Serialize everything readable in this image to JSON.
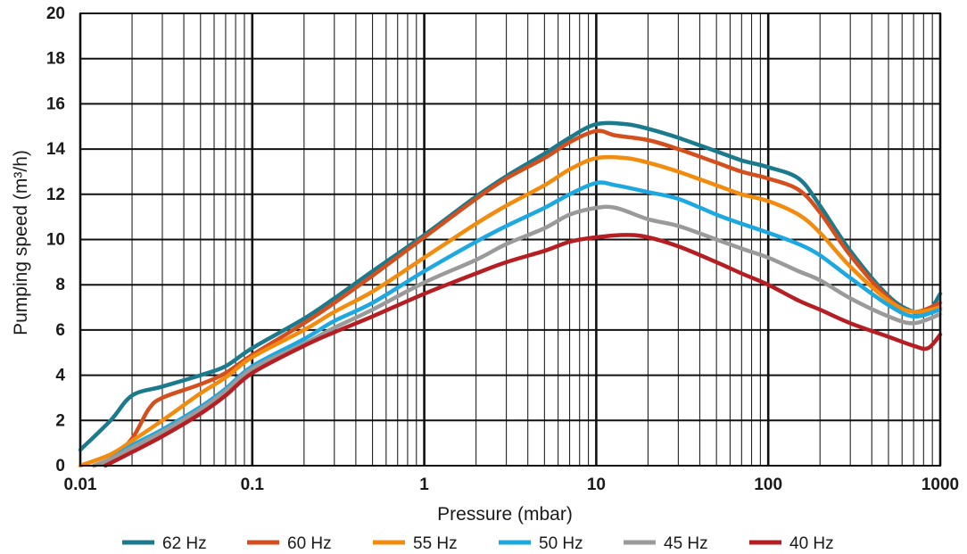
{
  "chart_data": {
    "type": "line",
    "xlabel": "Pressure (mbar)",
    "ylabel": "Pumping speed (m³/h)",
    "x_scale": "log",
    "xlim": [
      0.01,
      1000
    ],
    "ylim": [
      0,
      20
    ],
    "grid": true,
    "legend_position": "bottom",
    "x_ticks": [
      {
        "value": 0.01,
        "label": "0.01"
      },
      {
        "value": 0.1,
        "label": "0.1"
      },
      {
        "value": 1,
        "label": "1"
      },
      {
        "value": 10,
        "label": "10"
      },
      {
        "value": 100,
        "label": "100"
      },
      {
        "value": 1000,
        "label": "1000"
      }
    ],
    "y_ticks": [
      {
        "value": 0,
        "label": "0"
      },
      {
        "value": 2,
        "label": "2"
      },
      {
        "value": 4,
        "label": "4"
      },
      {
        "value": 6,
        "label": "6"
      },
      {
        "value": 8,
        "label": "8"
      },
      {
        "value": 10,
        "label": "10"
      },
      {
        "value": 12,
        "label": "12"
      },
      {
        "value": 14,
        "label": "14"
      },
      {
        "value": 16,
        "label": "16"
      },
      {
        "value": 18,
        "label": "18"
      },
      {
        "value": 20,
        "label": "20"
      }
    ],
    "series": [
      {
        "name": "62 Hz",
        "color": "#1b7a8c",
        "points": [
          [
            0.01,
            0.7
          ],
          [
            0.015,
            2.0
          ],
          [
            0.02,
            3.1
          ],
          [
            0.03,
            3.5
          ],
          [
            0.05,
            4.0
          ],
          [
            0.07,
            4.4
          ],
          [
            0.1,
            5.2
          ],
          [
            0.2,
            6.5
          ],
          [
            0.3,
            7.4
          ],
          [
            0.5,
            8.6
          ],
          [
            1,
            10.2
          ],
          [
            2,
            11.9
          ],
          [
            3,
            12.8
          ],
          [
            5,
            13.8
          ],
          [
            7,
            14.5
          ],
          [
            10,
            15.1
          ],
          [
            15,
            15.1
          ],
          [
            20,
            14.9
          ],
          [
            30,
            14.5
          ],
          [
            50,
            13.9
          ],
          [
            70,
            13.5
          ],
          [
            100,
            13.2
          ],
          [
            150,
            12.7
          ],
          [
            200,
            11.5
          ],
          [
            300,
            9.5
          ],
          [
            500,
            7.5
          ],
          [
            700,
            6.8
          ],
          [
            850,
            6.8
          ],
          [
            1000,
            7.6
          ]
        ]
      },
      {
        "name": "60 Hz",
        "color": "#d44f1e",
        "points": [
          [
            0.012,
            0.0
          ],
          [
            0.015,
            0.3
          ],
          [
            0.02,
            1.2
          ],
          [
            0.025,
            2.5
          ],
          [
            0.03,
            3.0
          ],
          [
            0.05,
            3.6
          ],
          [
            0.07,
            4.1
          ],
          [
            0.1,
            4.9
          ],
          [
            0.2,
            6.3
          ],
          [
            0.3,
            7.2
          ],
          [
            0.5,
            8.4
          ],
          [
            1,
            10.1
          ],
          [
            2,
            11.8
          ],
          [
            3,
            12.7
          ],
          [
            5,
            13.6
          ],
          [
            7,
            14.3
          ],
          [
            10,
            14.8
          ],
          [
            13,
            14.6
          ],
          [
            20,
            14.4
          ],
          [
            30,
            14.0
          ],
          [
            50,
            13.4
          ],
          [
            70,
            13.0
          ],
          [
            100,
            12.7
          ],
          [
            150,
            12.2
          ],
          [
            200,
            11.2
          ],
          [
            300,
            9.3
          ],
          [
            500,
            7.4
          ],
          [
            700,
            6.8
          ],
          [
            1000,
            7.2
          ]
        ]
      },
      {
        "name": "55 Hz",
        "color": "#f28c0f",
        "points": [
          [
            0.01,
            0.0
          ],
          [
            0.015,
            0.5
          ],
          [
            0.02,
            1.1
          ],
          [
            0.03,
            2.0
          ],
          [
            0.05,
            3.2
          ],
          [
            0.07,
            3.9
          ],
          [
            0.1,
            4.8
          ],
          [
            0.2,
            6.0
          ],
          [
            0.3,
            6.8
          ],
          [
            0.5,
            7.7
          ],
          [
            1,
            9.2
          ],
          [
            2,
            10.7
          ],
          [
            3,
            11.5
          ],
          [
            5,
            12.4
          ],
          [
            7,
            13.1
          ],
          [
            10,
            13.6
          ],
          [
            15,
            13.6
          ],
          [
            20,
            13.4
          ],
          [
            30,
            13.0
          ],
          [
            50,
            12.4
          ],
          [
            70,
            12.0
          ],
          [
            100,
            11.7
          ],
          [
            150,
            11.1
          ],
          [
            200,
            10.3
          ],
          [
            300,
            8.8
          ],
          [
            500,
            7.3
          ],
          [
            700,
            6.8
          ],
          [
            1000,
            7.0
          ]
        ]
      },
      {
        "name": "50 Hz",
        "color": "#1ea8e0",
        "points": [
          [
            0.012,
            0.0
          ],
          [
            0.015,
            0.3
          ],
          [
            0.02,
            0.9
          ],
          [
            0.03,
            1.6
          ],
          [
            0.05,
            2.6
          ],
          [
            0.07,
            3.4
          ],
          [
            0.1,
            4.4
          ],
          [
            0.2,
            5.6
          ],
          [
            0.3,
            6.4
          ],
          [
            0.5,
            7.2
          ],
          [
            1,
            8.6
          ],
          [
            2,
            9.9
          ],
          [
            3,
            10.6
          ],
          [
            5,
            11.4
          ],
          [
            7,
            12.0
          ],
          [
            10,
            12.5
          ],
          [
            13,
            12.4
          ],
          [
            20,
            12.1
          ],
          [
            30,
            11.8
          ],
          [
            50,
            11.1
          ],
          [
            70,
            10.7
          ],
          [
            100,
            10.3
          ],
          [
            150,
            9.8
          ],
          [
            200,
            9.3
          ],
          [
            300,
            8.3
          ],
          [
            500,
            7.1
          ],
          [
            700,
            6.6
          ],
          [
            1000,
            6.9
          ]
        ]
      },
      {
        "name": "45 Hz",
        "color": "#9a9a9a",
        "points": [
          [
            0.012,
            0.0
          ],
          [
            0.015,
            0.3
          ],
          [
            0.02,
            0.8
          ],
          [
            0.03,
            1.5
          ],
          [
            0.05,
            2.5
          ],
          [
            0.07,
            3.3
          ],
          [
            0.1,
            4.3
          ],
          [
            0.2,
            5.4
          ],
          [
            0.3,
            6.1
          ],
          [
            0.5,
            6.9
          ],
          [
            1,
            8.1
          ],
          [
            2,
            9.1
          ],
          [
            3,
            9.8
          ],
          [
            5,
            10.5
          ],
          [
            7,
            11.1
          ],
          [
            10,
            11.4
          ],
          [
            13,
            11.4
          ],
          [
            20,
            10.9
          ],
          [
            30,
            10.6
          ],
          [
            50,
            10.0
          ],
          [
            70,
            9.6
          ],
          [
            100,
            9.2
          ],
          [
            150,
            8.6
          ],
          [
            200,
            8.2
          ],
          [
            300,
            7.4
          ],
          [
            500,
            6.6
          ],
          [
            700,
            6.3
          ],
          [
            1000,
            6.7
          ]
        ]
      },
      {
        "name": "40 Hz",
        "color": "#b51f24",
        "points": [
          [
            0.014,
            0.0
          ],
          [
            0.02,
            0.6
          ],
          [
            0.03,
            1.3
          ],
          [
            0.05,
            2.3
          ],
          [
            0.07,
            3.1
          ],
          [
            0.1,
            4.1
          ],
          [
            0.2,
            5.3
          ],
          [
            0.3,
            5.9
          ],
          [
            0.5,
            6.6
          ],
          [
            1,
            7.6
          ],
          [
            2,
            8.5
          ],
          [
            3,
            9.0
          ],
          [
            5,
            9.5
          ],
          [
            7,
            9.9
          ],
          [
            10,
            10.1
          ],
          [
            15,
            10.2
          ],
          [
            20,
            10.1
          ],
          [
            30,
            9.7
          ],
          [
            50,
            9.0
          ],
          [
            70,
            8.5
          ],
          [
            100,
            8.0
          ],
          [
            150,
            7.3
          ],
          [
            200,
            6.9
          ],
          [
            300,
            6.3
          ],
          [
            500,
            5.7
          ],
          [
            700,
            5.3
          ],
          [
            850,
            5.2
          ],
          [
            1000,
            5.8
          ]
        ]
      }
    ]
  }
}
